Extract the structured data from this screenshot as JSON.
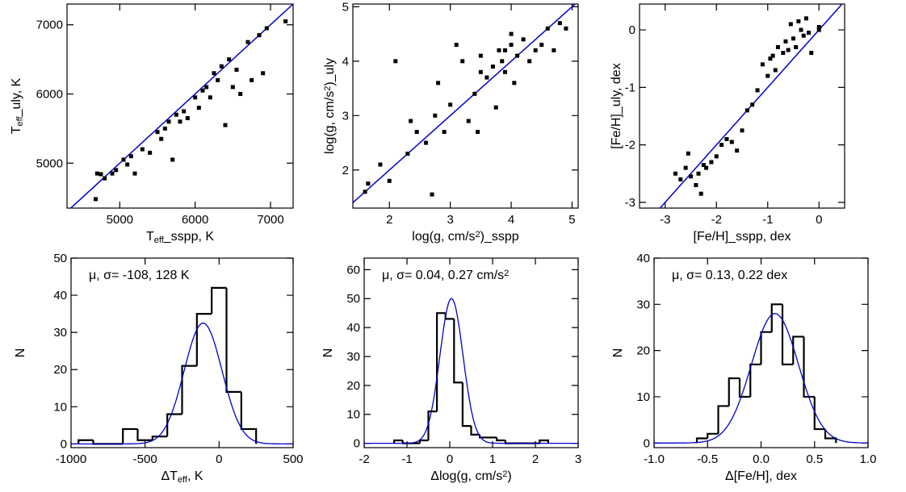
{
  "chart_data": [
    {
      "type": "scatter",
      "xlabel": [
        {
          "text": "T"
        },
        {
          "text": "eff",
          "shift": "sub"
        },
        {
          "text": "_sspp, K"
        }
      ],
      "ylabel": [
        {
          "text": "T"
        },
        {
          "text": "eff",
          "shift": "sub"
        },
        {
          "text": "_uly, K"
        }
      ],
      "xlim": [
        4300,
        7300
      ],
      "ylim": [
        4350,
        7300
      ],
      "xticks": [
        5000,
        6000,
        7000
      ],
      "yticks": [
        5000,
        6000,
        7000
      ],
      "color": "#000000",
      "line_color": "#0000cc",
      "x": [
        4680,
        4700,
        4750,
        4800,
        4900,
        4950,
        5050,
        5100,
        5150,
        5200,
        5300,
        5400,
        5500,
        5550,
        5600,
        5650,
        5700,
        5750,
        5800,
        5850,
        5900,
        6000,
        6050,
        6100,
        6150,
        6200,
        6250,
        6300,
        6350,
        6400,
        6450,
        6500,
        6550,
        6600,
        6700,
        6750,
        6850,
        6900,
        6950,
        7200
      ],
      "values": [
        4480,
        4850,
        4840,
        4780,
        4850,
        4900,
        5050,
        4980,
        5100,
        4850,
        5200,
        5150,
        5450,
        5350,
        5500,
        5600,
        5050,
        5700,
        5600,
        5750,
        5650,
        5950,
        5800,
        6050,
        6100,
        5950,
        6300,
        6200,
        6400,
        5550,
        6500,
        6100,
        6350,
        6000,
        6750,
        6200,
        6850,
        6300,
        6950,
        7050
      ]
    },
    {
      "type": "scatter",
      "xlabel": [
        {
          "text": "log(g, cm/s"
        },
        {
          "text": "2",
          "shift": "sup"
        },
        {
          "text": ")_sspp"
        }
      ],
      "ylabel": [
        {
          "text": "log(g, cm/s"
        },
        {
          "text": "2",
          "shift": "sup"
        },
        {
          "text": ")_uly"
        }
      ],
      "xlim": [
        1.4,
        5.1
      ],
      "ylim": [
        1.3,
        5.05
      ],
      "xticks": [
        2,
        3,
        4,
        5
      ],
      "yticks": [
        2,
        3,
        4,
        5
      ],
      "color": "#000000",
      "line_color": "#0000cc",
      "x": [
        1.6,
        1.65,
        1.85,
        2,
        2.1,
        2.3,
        2.35,
        2.45,
        2.6,
        2.7,
        2.75,
        2.8,
        2.9,
        3.0,
        3.1,
        3.2,
        3.3,
        3.4,
        3.45,
        3.5,
        3.6,
        3.7,
        3.75,
        3.8,
        3.85,
        3.9,
        4.0,
        4.05,
        4.1,
        4.2,
        4.3,
        4.4,
        4.5,
        4.6,
        4.7,
        4.8,
        4.9,
        4.0,
        3.9,
        3.5
      ],
      "values": [
        1.6,
        1.75,
        2.1,
        1.8,
        4,
        2.3,
        2.9,
        2.7,
        2.5,
        1.55,
        3.0,
        3.6,
        2.7,
        3.2,
        4.3,
        4.0,
        2.9,
        3.4,
        2.7,
        4.1,
        3.7,
        3.9,
        3.15,
        4.2,
        4.0,
        3.8,
        4.3,
        3.6,
        4.1,
        4.4,
        4.0,
        4.2,
        4.3,
        4.6,
        4.2,
        4.7,
        4.6,
        4.5,
        4.2,
        3.8
      ]
    },
    {
      "type": "scatter",
      "xlabel": [
        {
          "text": "[Fe/H]_sspp, dex"
        }
      ],
      "ylabel": [
        {
          "text": "[Fe/H]_uly, dex"
        }
      ],
      "xlim": [
        -3.5,
        0.5
      ],
      "ylim": [
        -3.1,
        0.45
      ],
      "xticks": [
        -3,
        -2,
        -1,
        0
      ],
      "yticks": [
        -3,
        -2,
        -1,
        0
      ],
      "color": "#000000",
      "line_color": "#0000cc",
      "x": [
        -2.8,
        -2.7,
        -2.6,
        -2.55,
        -2.5,
        -2.4,
        -2.35,
        -2.3,
        -2.25,
        -2.2,
        -2.1,
        -2.0,
        -1.9,
        -1.8,
        -1.7,
        -1.6,
        -1.5,
        -1.4,
        -1.3,
        -1.2,
        -1.1,
        -1.0,
        -0.95,
        -0.9,
        -0.85,
        -0.8,
        -0.7,
        -0.65,
        -0.6,
        -0.55,
        -0.5,
        -0.45,
        -0.4,
        -0.35,
        -0.3,
        -0.25,
        -0.2,
        -0.15,
        0,
        0.0
      ],
      "values": [
        -2.5,
        -2.6,
        -2.4,
        -2.15,
        -2.55,
        -2.7,
        -2.5,
        -2.85,
        -2.35,
        -2.4,
        -2.3,
        -2.2,
        -2.0,
        -1.9,
        -1.95,
        -2.1,
        -1.75,
        -1.4,
        -1.3,
        -1.05,
        -0.6,
        -0.8,
        -0.5,
        -0.45,
        -0.7,
        -0.3,
        -0.4,
        -0.2,
        -0.35,
        0.1,
        -0.15,
        -0.3,
        0.15,
        0.0,
        -0.1,
        0.2,
        -0.05,
        -0.4,
        0.0,
        0.05
      ]
    },
    {
      "type": "histogram",
      "xlabel": [
        {
          "text": "ΔT"
        },
        {
          "text": "eff",
          "shift": "sub"
        },
        {
          "text": ", K"
        }
      ],
      "ylabel": [
        {
          "text": "N"
        }
      ],
      "annotation": [
        {
          "text": "μ, σ= -108, 128 K"
        }
      ],
      "xlim": [
        -1000,
        500
      ],
      "ylim": [
        -1,
        50
      ],
      "xticks": [
        -1000,
        -500,
        0,
        500
      ],
      "yticks": [
        0,
        10,
        20,
        30,
        40,
        50
      ],
      "color": "#000000",
      "line_color": "#0000cc",
      "bins": [
        -950,
        -850,
        -750,
        -650,
        -550,
        -450,
        -350,
        -250,
        -150,
        -50,
        50,
        150,
        250
      ],
      "counts": [
        1,
        0,
        0,
        4,
        1,
        2,
        8,
        21,
        35,
        42,
        14,
        4
      ],
      "fit": {
        "mu": -108,
        "sigma": 128,
        "peak": 32.5
      }
    },
    {
      "type": "histogram",
      "xlabel": [
        {
          "text": "Δlog(g, cm/s"
        },
        {
          "text": "2",
          "shift": "sup"
        },
        {
          "text": ")"
        }
      ],
      "ylabel": [
        {
          "text": "N"
        }
      ],
      "annotation": [
        {
          "text": "μ, σ=  0.04, 0.27 cm/s"
        },
        {
          "text": "2",
          "shift": "sup"
        }
      ],
      "xlim": [
        -2,
        3
      ],
      "ylim": [
        -1.5,
        64
      ],
      "xticks": [
        -2,
        -1,
        0,
        1,
        2,
        3
      ],
      "yticks": [
        0,
        10,
        20,
        30,
        40,
        50,
        60
      ],
      "color": "#000000",
      "line_color": "#0000cc",
      "bins": [
        -1.3,
        -1.1,
        -0.9,
        -0.7,
        -0.5,
        -0.3,
        -0.1,
        0.1,
        0.3,
        0.5,
        0.7,
        0.9,
        1.1,
        1.3,
        1.5,
        1.7,
        1.9,
        2.1,
        2.3
      ],
      "counts": [
        1,
        0,
        0,
        1,
        11,
        45,
        43,
        21,
        6,
        3,
        2,
        2,
        1,
        0,
        0,
        0,
        0,
        1
      ],
      "fit": {
        "mu": 0.04,
        "sigma": 0.27,
        "peak": 50
      }
    },
    {
      "type": "histogram",
      "xlabel": [
        {
          "text": "Δ[Fe/H], dex"
        }
      ],
      "ylabel": [
        {
          "text": "N"
        }
      ],
      "annotation": [
        {
          "text": "μ, σ= 0.13, 0.22 dex"
        }
      ],
      "xlim": [
        -1,
        1
      ],
      "ylim": [
        -1,
        40
      ],
      "xticks": [
        {
          "value": -1,
          "label": "-1.0"
        },
        -0.5,
        {
          "value": 0,
          "label": "0.0"
        },
        0.5,
        {
          "value": 1,
          "label": "1.0"
        }
      ],
      "yticks": [
        0,
        10,
        20,
        30,
        40
      ],
      "color": "#000000",
      "line_color": "#0000cc",
      "bins": [
        -0.6,
        -0.5,
        -0.4,
        -0.3,
        -0.2,
        -0.1,
        0.0,
        0.1,
        0.2,
        0.3,
        0.4,
        0.5,
        0.6,
        0.7
      ],
      "counts": [
        1,
        2,
        8,
        14,
        10,
        17,
        24,
        30,
        17,
        23,
        10,
        3,
        1
      ],
      "fit": {
        "mu": 0.13,
        "sigma": 0.22,
        "peak": 28
      }
    }
  ]
}
